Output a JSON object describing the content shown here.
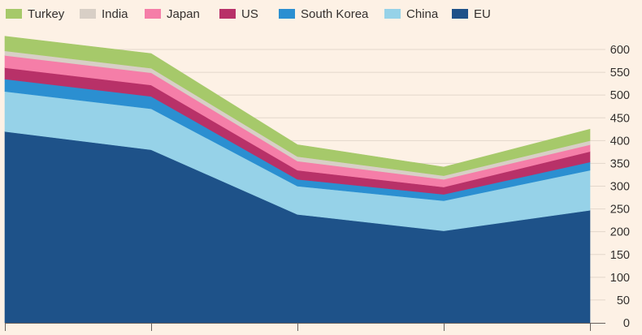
{
  "chart_data": {
    "type": "area",
    "stacked": true,
    "x_count": 5,
    "x_tick_labels": [],
    "ylim": [
      0,
      600
    ],
    "yticks": [
      0,
      50,
      100,
      150,
      200,
      250,
      300,
      350,
      400,
      450,
      500,
      550,
      600
    ],
    "grid": true,
    "legend_position": "top-left",
    "series": [
      {
        "name": "EU",
        "color": "#1e5289",
        "values": [
          420,
          380,
          238,
          202,
          247
        ]
      },
      {
        "name": "China",
        "color": "#96d2e8",
        "values": [
          88,
          90,
          62,
          66,
          88
        ]
      },
      {
        "name": "South Korea",
        "color": "#2b8fd1",
        "values": [
          27,
          27,
          15,
          14,
          18
        ]
      },
      {
        "name": "US",
        "color": "#b83168",
        "values": [
          25,
          25,
          20,
          16,
          23
        ]
      },
      {
        "name": "Japan",
        "color": "#f57ea8",
        "values": [
          27,
          27,
          20,
          17,
          15
        ]
      },
      {
        "name": "India",
        "color": "#d8cfc6",
        "values": [
          10,
          10,
          10,
          8,
          9
        ]
      },
      {
        "name": "Turkey",
        "color": "#a6c96a",
        "values": [
          32,
          32,
          26,
          19,
          25
        ]
      }
    ],
    "legend_order": [
      "Turkey",
      "India",
      "Japan",
      "US",
      "South Korea",
      "China",
      "EU"
    ]
  }
}
